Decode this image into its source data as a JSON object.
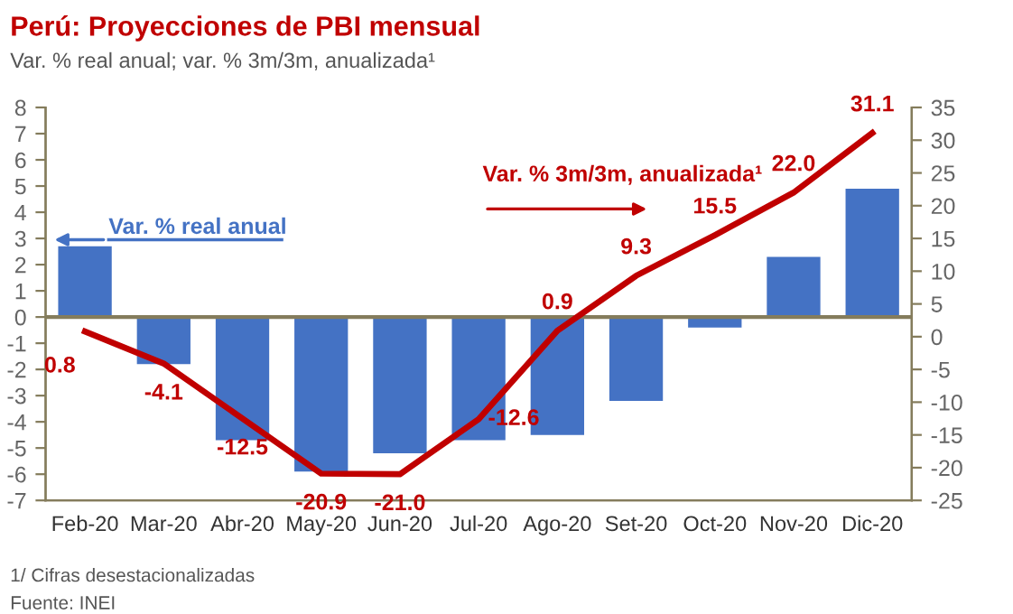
{
  "chart_data": {
    "type": "bar",
    "title": "Perú: Proyecciones de PBI mensual",
    "subtitle": "Var. % real anual; var. % 3m/3m, anualizada¹",
    "categories": [
      "Feb-20",
      "Mar-20",
      "Abr-20",
      "May-20",
      "Jun-20",
      "Jul-20",
      "Ago-20",
      "Set-20",
      "Oct-20",
      "Nov-20",
      "Dic-20"
    ],
    "series": [
      {
        "name": "Var. % real anual",
        "color": "#4472c4",
        "values": [
          2.7,
          -1.8,
          -4.7,
          -5.9,
          -5.2,
          -4.7,
          -4.5,
          -3.2,
          -0.4,
          2.3,
          4.9
        ]
      },
      {
        "name": "Var. % 3m/3m, anualizada¹",
        "type": "line",
        "axis": "y2",
        "color": "#c00000",
        "values": [
          0.8,
          -4.1,
          -12.5,
          -20.9,
          -21.0,
          -12.6,
          0.9,
          9.3,
          15.5,
          22.0,
          31.1
        ],
        "value_labels": [
          "0.8",
          "-4.1",
          "-12.5",
          "-20.9",
          "-21.0",
          "-12.6",
          "0.9",
          "9.3",
          "15.5",
          "22.0",
          "31.1"
        ]
      }
    ],
    "ylim": [
      -7,
      8
    ],
    "yticks": [
      -7,
      -6,
      -5,
      -4,
      -3,
      -2,
      -1,
      0,
      1,
      2,
      3,
      4,
      5,
      6,
      7,
      8
    ],
    "y2lim": [
      -25,
      35
    ],
    "y2ticks": [
      -25,
      -20,
      -15,
      -10,
      -5,
      0,
      5,
      10,
      15,
      20,
      25,
      30,
      35
    ],
    "legend": "top left",
    "marker": "none",
    "line_style": "solid",
    "annotations": [
      "1/ Cifras desestacionalizadas",
      "Fuente: INEI"
    ]
  }
}
